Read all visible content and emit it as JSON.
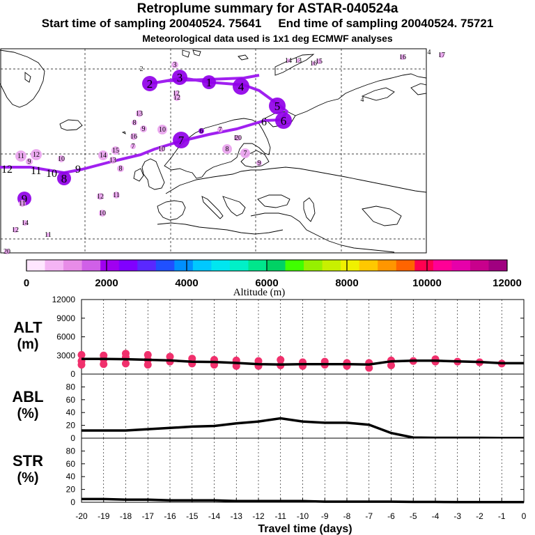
{
  "header": {
    "title": "Retroplume summary for ASTAR-040524a",
    "start_label": "Start time of sampling 20040524. 75641",
    "end_label": "End time of sampling 20040524. 75721",
    "met_label": "Meteorological data used is 1x1 deg ECMWF analyses"
  },
  "colors": {
    "trajectory": "#a020f0",
    "cluster_dark": "#9000e8",
    "altitude_points": "#f0306c",
    "mean_line": "#000000"
  },
  "map": {
    "trajectory_labels": [
      "12",
      "11",
      "10",
      "8",
      "9",
      "7",
      "6",
      "5",
      "4",
      "1",
      "3",
      "2"
    ],
    "clusters": [
      {
        "label": "2",
        "level": "dark"
      },
      {
        "label": "3",
        "level": "dark"
      },
      {
        "label": "1",
        "level": "dark"
      },
      {
        "label": "4",
        "level": "dark"
      },
      {
        "label": "5",
        "level": "dark"
      },
      {
        "label": "6",
        "level": "dark"
      },
      {
        "label": "7",
        "level": "dark"
      },
      {
        "label": "8",
        "level": "dark"
      },
      {
        "label": "9",
        "level": "dark"
      },
      {
        "label": "11",
        "level": "light"
      },
      {
        "label": "12",
        "level": "light"
      },
      {
        "label": "9",
        "level": "light"
      },
      {
        "label": "10",
        "level": "light"
      },
      {
        "label": "14",
        "level": "light"
      },
      {
        "label": "15",
        "level": "light"
      },
      {
        "label": "13",
        "level": "light"
      },
      {
        "label": "8",
        "level": "light"
      },
      {
        "label": "7",
        "level": "light"
      },
      {
        "label": "11",
        "level": "light"
      },
      {
        "label": "10",
        "level": "light"
      },
      {
        "label": "12",
        "level": "light"
      },
      {
        "label": "8",
        "level": "light"
      },
      {
        "label": "7",
        "level": "light"
      },
      {
        "label": "16",
        "level": "light"
      },
      {
        "label": "10",
        "level": "light"
      },
      {
        "label": "9",
        "level": "light"
      },
      {
        "label": "13",
        "level": "light"
      },
      {
        "label": "12",
        "level": "light"
      },
      {
        "label": "11",
        "level": "light"
      },
      {
        "label": "14",
        "level": "light"
      },
      {
        "label": "11",
        "level": "light"
      },
      {
        "label": "12",
        "level": "light"
      },
      {
        "label": "20",
        "level": "light"
      },
      {
        "label": "2",
        "level": "none"
      },
      {
        "label": "3",
        "level": "light"
      },
      {
        "label": "12",
        "level": "light"
      },
      {
        "label": "14",
        "level": "light"
      },
      {
        "label": "13",
        "level": "light"
      },
      {
        "label": "16",
        "level": "light"
      },
      {
        "label": "15",
        "level": "light"
      },
      {
        "label": "16",
        "level": "light"
      },
      {
        "label": "4",
        "level": "none"
      },
      {
        "label": "17",
        "level": "light"
      },
      {
        "label": "4",
        "level": "none"
      },
      {
        "label": "6",
        "level": "dark"
      },
      {
        "label": "9",
        "level": "light"
      },
      {
        "label": "7",
        "level": "light"
      },
      {
        "label": "10",
        "level": "light"
      },
      {
        "label": "11",
        "level": "light"
      },
      {
        "label": "20",
        "level": "light"
      },
      {
        "label": "8",
        "level": "light"
      }
    ]
  },
  "colorbar": {
    "colors": [
      "#ffe6ff",
      "#f4b4f4",
      "#e88ce8",
      "#d060e8",
      "#a000f0",
      "#8000ff",
      "#5a28ff",
      "#2050ff",
      "#0090ff",
      "#00c8ff",
      "#00e6f0",
      "#00f0c8",
      "#00e68c",
      "#00d264",
      "#40ff00",
      "#96f000",
      "#c8f000",
      "#f0f000",
      "#ffc800",
      "#ff9600",
      "#ff6400",
      "#ff0050",
      "#ff0096",
      "#e600aa",
      "#c8008c",
      "#a00080"
    ],
    "ticks": [
      "0",
      "2000",
      "4000",
      "6000",
      "8000",
      "10000",
      "12000"
    ],
    "label": "Altitude (m)"
  },
  "chart_data": [
    {
      "type": "scatter",
      "title": "ALT",
      "ylabel_line1": "ALT",
      "ylabel_line2": "(m)",
      "ylim": [
        0,
        12000
      ],
      "yticks": [
        "12000",
        "9000",
        "6000",
        "3000",
        "0"
      ],
      "x": [
        -20,
        -19,
        -18,
        -17,
        -16,
        -15,
        -14,
        -13,
        -12,
        -11,
        -10,
        -9,
        -8,
        -7,
        -6,
        -5,
        -4,
        -3,
        -2,
        -1,
        0
      ],
      "mean_series": {
        "name": "mean altitude",
        "x": [
          -20,
          -19,
          -18,
          -17,
          -16,
          -15,
          -14,
          -13,
          -12,
          -11,
          -10,
          -9,
          -8,
          -7,
          -6,
          -5,
          -4,
          -3,
          -2,
          -1,
          0
        ],
        "values": [
          2450,
          2450,
          2400,
          2300,
          2200,
          2000,
          1950,
          1800,
          1600,
          1550,
          1600,
          1600,
          1600,
          1550,
          2050,
          2150,
          2150,
          2050,
          1950,
          1750,
          1750
        ]
      },
      "points": [
        {
          "x": -20,
          "y": 3100
        },
        {
          "x": -20,
          "y": 2100
        },
        {
          "x": -20,
          "y": 1500
        },
        {
          "x": -19,
          "y": 3000
        },
        {
          "x": -19,
          "y": 2400
        },
        {
          "x": -19,
          "y": 1600
        },
        {
          "x": -18,
          "y": 3300
        },
        {
          "x": -18,
          "y": 2700
        },
        {
          "x": -18,
          "y": 1700
        },
        {
          "x": -17,
          "y": 3100
        },
        {
          "x": -17,
          "y": 2300
        },
        {
          "x": -17,
          "y": 1500
        },
        {
          "x": -16,
          "y": 2800
        },
        {
          "x": -16,
          "y": 2000
        },
        {
          "x": -15,
          "y": 2500
        },
        {
          "x": -15,
          "y": 1700
        },
        {
          "x": -14,
          "y": 2300
        },
        {
          "x": -14,
          "y": 1500
        },
        {
          "x": -13,
          "y": 2200
        },
        {
          "x": -13,
          "y": 1300
        },
        {
          "x": -12,
          "y": 2100
        },
        {
          "x": -12,
          "y": 1300
        },
        {
          "x": -11,
          "y": 2300
        },
        {
          "x": -11,
          "y": 1400
        },
        {
          "x": -10,
          "y": 1900
        },
        {
          "x": -10,
          "y": 1300
        },
        {
          "x": -9,
          "y": 2000
        },
        {
          "x": -9,
          "y": 1500
        },
        {
          "x": -8,
          "y": 1800
        },
        {
          "x": -8,
          "y": 1300
        },
        {
          "x": -7,
          "y": 1800
        },
        {
          "x": -7,
          "y": 1000
        },
        {
          "x": -6,
          "y": 2200
        },
        {
          "x": -6,
          "y": 1400
        },
        {
          "x": -5,
          "y": 2100
        },
        {
          "x": -4,
          "y": 2400
        },
        {
          "x": -4,
          "y": 2000
        },
        {
          "x": -3,
          "y": 2000
        },
        {
          "x": -2,
          "y": 1900
        },
        {
          "x": -1,
          "y": 1700
        }
      ]
    },
    {
      "type": "line",
      "title": "ABL",
      "ylabel_line1": "ABL",
      "ylabel_line2": "(%)",
      "ylim": [
        0,
        100
      ],
      "yticks": [
        "80",
        "60",
        "40",
        "20",
        "0"
      ],
      "x": [
        -20,
        -19,
        -18,
        -17,
        -16,
        -15,
        -14,
        -13,
        -12,
        -11,
        -10,
        -9,
        -8,
        -7,
        -6,
        -5,
        -4,
        -3,
        -2,
        -1,
        0
      ],
      "values": [
        12,
        12,
        12,
        14,
        16,
        18,
        19,
        23,
        26,
        31,
        26,
        24,
        24,
        21,
        8,
        1,
        0.5,
        0.5,
        0.5,
        0.3,
        0.3
      ]
    },
    {
      "type": "line",
      "title": "STR",
      "ylabel_line1": "STR",
      "ylabel_line2": "(%)",
      "ylim": [
        0,
        100
      ],
      "yticks": [
        "80",
        "60",
        "40",
        "20",
        "0"
      ],
      "x": [
        -20,
        -19,
        -18,
        -17,
        -16,
        -15,
        -14,
        -13,
        -12,
        -11,
        -10,
        -9,
        -8,
        -7,
        -6,
        -5,
        -4,
        -3,
        -2,
        -1,
        0
      ],
      "values": [
        5,
        5,
        4,
        4,
        3,
        3,
        3,
        2,
        2,
        2,
        2,
        1,
        1,
        1,
        1,
        0.5,
        0.5,
        0.3,
        0.3,
        0.2,
        0.2
      ]
    }
  ],
  "xaxis": {
    "ticks": [
      "-20",
      "-19",
      "-18",
      "-17",
      "-16",
      "-15",
      "-14",
      "-13",
      "-12",
      "-11",
      "-10",
      "-9",
      "-8",
      "-7",
      "-6",
      "-5",
      "-4",
      "-3",
      "-2",
      "-1",
      "0"
    ],
    "label": "Travel time (days)"
  }
}
